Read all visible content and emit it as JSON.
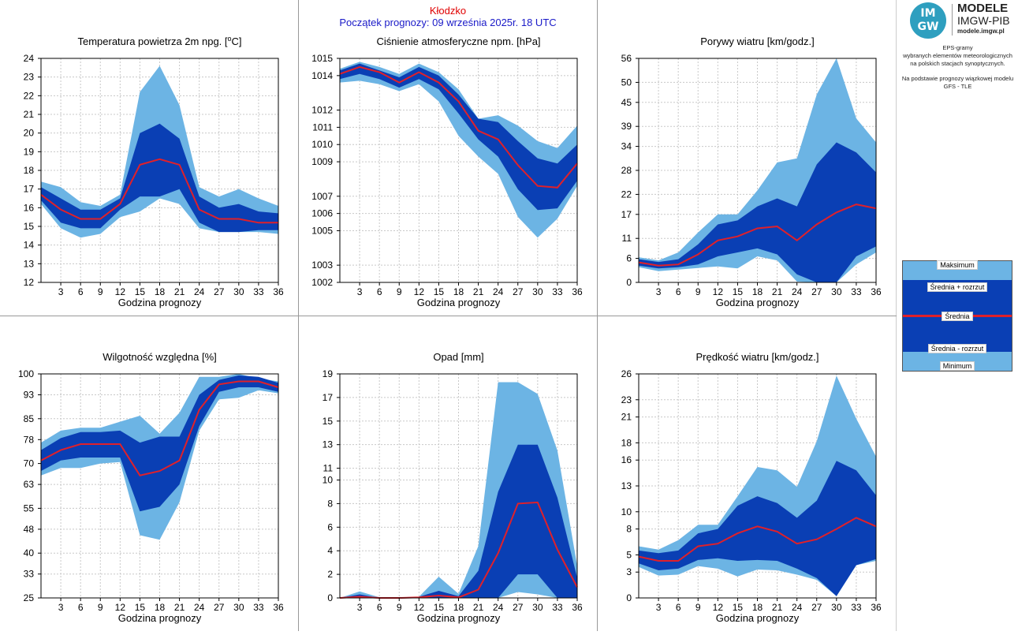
{
  "header": {
    "station": "Kłodzko",
    "forecast_start": "Początek prognozy: 09 września 2025r. 18 UTC"
  },
  "colors": {
    "range": "#6cb4e4",
    "spread": "#0a3fb4",
    "mean": "#e0202a",
    "header_red": "#e00000",
    "header_blue": "#1a1ac8"
  },
  "logo": {
    "mark_line1": "IM",
    "mark_line2": "GW",
    "title": "MODELE",
    "subtitle": "IMGW-PIB",
    "url": "modele.imgw.pl"
  },
  "description": {
    "line1": "EPS-gramy",
    "line2": "wybranych elementów meteorologicznych",
    "line3": "na polskich stacjach  synoptycznych.",
    "line4": "Na podstawie prognozy wiązkowej modelu",
    "line5": "GFS - TLE"
  },
  "legend": {
    "max": "Maksimum",
    "mean_plus": "Średnia + rozrzut",
    "mean": "Średnia",
    "mean_minus": "Średnia - rozrzut",
    "min": "Minimum"
  },
  "chart_data": [
    {
      "type": "area",
      "title": "Temperatura powietrza 2m npg. [°C]",
      "xlabel": "Godzina prognozy",
      "x": [
        0,
        3,
        6,
        9,
        12,
        15,
        18,
        21,
        24,
        27,
        30,
        33,
        36
      ],
      "xticks": [
        3,
        6,
        9,
        12,
        15,
        18,
        21,
        24,
        27,
        30,
        33,
        36
      ],
      "yticks": [
        "12",
        "13",
        "14",
        "15",
        "16",
        "17",
        "18",
        "19",
        "20",
        "21",
        "22",
        "23",
        "24"
      ],
      "ylim": [
        12,
        24
      ],
      "series": {
        "max": [
          17.4,
          17.1,
          16.3,
          16.1,
          16.7,
          22.2,
          23.6,
          21.5,
          17.1,
          16.6,
          17.0,
          16.5,
          16.1
        ],
        "mean_plus": [
          17.1,
          16.5,
          15.9,
          15.9,
          16.5,
          20.0,
          20.5,
          19.7,
          16.6,
          16.0,
          16.2,
          15.8,
          15.7
        ],
        "mean": [
          16.7,
          15.9,
          15.4,
          15.4,
          16.2,
          18.3,
          18.6,
          18.3,
          15.9,
          15.4,
          15.4,
          15.2,
          15.2
        ],
        "mean_minus": [
          16.4,
          15.2,
          14.9,
          14.9,
          15.9,
          16.6,
          16.6,
          17.0,
          15.2,
          14.7,
          14.7,
          14.8,
          14.8
        ],
        "min": [
          16.2,
          14.9,
          14.4,
          14.6,
          15.5,
          15.8,
          16.5,
          16.2,
          14.9,
          14.7,
          14.7,
          14.7,
          14.6
        ]
      }
    },
    {
      "type": "area",
      "title": "Ciśnienie atmosferyczne npm. [hPa]",
      "xlabel": "Godzina prognozy",
      "x": [
        0,
        3,
        6,
        9,
        12,
        15,
        18,
        21,
        24,
        27,
        30,
        33,
        36
      ],
      "xticks": [
        3,
        6,
        9,
        12,
        15,
        18,
        21,
        24,
        27,
        30,
        33,
        36
      ],
      "yticks": [
        "1002",
        "1003",
        "1005",
        "1006",
        "1007",
        "1009",
        "1010",
        "1011",
        "1012",
        "1014",
        "1015"
      ],
      "ylim": [
        1002,
        1015
      ],
      "series": {
        "max": [
          1014.4,
          1014.8,
          1014.5,
          1014.1,
          1014.7,
          1014.2,
          1013.2,
          1011.5,
          1011.7,
          1011.1,
          1010.2,
          1009.8,
          1011.1
        ],
        "mean_plus": [
          1014.3,
          1014.7,
          1014.3,
          1013.9,
          1014.5,
          1014.0,
          1012.9,
          1011.5,
          1011.3,
          1010.2,
          1009.2,
          1008.9,
          1010.0
        ],
        "mean": [
          1014.1,
          1014.5,
          1014.2,
          1013.6,
          1014.2,
          1013.6,
          1012.5,
          1010.8,
          1010.3,
          1008.8,
          1007.6,
          1007.5,
          1008.9
        ],
        "mean_minus": [
          1013.8,
          1014.1,
          1013.8,
          1013.3,
          1013.8,
          1013.2,
          1011.8,
          1010.3,
          1009.3,
          1007.4,
          1006.2,
          1006.3,
          1007.9
        ],
        "min": [
          1013.6,
          1013.7,
          1013.5,
          1013.1,
          1013.5,
          1012.5,
          1010.5,
          1009.3,
          1008.3,
          1005.8,
          1004.6,
          1005.7,
          1007.6
        ]
      }
    },
    {
      "type": "area",
      "title": "Porywy wiatru [km/godz.]",
      "xlabel": "Godzina prognozy",
      "x": [
        0,
        3,
        6,
        9,
        12,
        15,
        18,
        21,
        24,
        27,
        30,
        33,
        36
      ],
      "xticks": [
        3,
        6,
        9,
        12,
        15,
        18,
        21,
        24,
        27,
        30,
        33,
        36
      ],
      "yticks": [
        "0",
        "6",
        "11",
        "17",
        "22",
        "28",
        "34",
        "39",
        "45",
        "50",
        "56"
      ],
      "ylim": [
        0,
        56
      ],
      "series": {
        "max": [
          6.3,
          5.5,
          7.5,
          12.5,
          17.0,
          17.0,
          23.0,
          30.0,
          31.0,
          47.0,
          56.0,
          41.0,
          35.0
        ],
        "mean_plus": [
          5.8,
          5.1,
          5.8,
          9.5,
          14.5,
          15.5,
          19.0,
          21.0,
          19.0,
          29.5,
          35.0,
          32.5,
          27.5
        ],
        "mean": [
          5.0,
          4.2,
          4.5,
          7.0,
          10.5,
          11.5,
          13.5,
          14.0,
          10.5,
          14.5,
          17.5,
          19.5,
          18.5
        ],
        "mean_minus": [
          4.2,
          3.5,
          3.8,
          4.5,
          6.5,
          7.5,
          8.5,
          7.0,
          2.0,
          0.0,
          0.0,
          6.5,
          9.0
        ],
        "min": [
          3.8,
          2.8,
          3.2,
          3.6,
          4.0,
          3.5,
          6.5,
          5.5,
          0.2,
          0.0,
          0.0,
          4.5,
          7.5
        ]
      }
    },
    {
      "type": "area",
      "title": "Wilgotność względna [%]",
      "xlabel": "Godzina prognozy",
      "x": [
        0,
        3,
        6,
        9,
        12,
        15,
        18,
        21,
        24,
        27,
        30,
        33,
        36
      ],
      "xticks": [
        3,
        6,
        9,
        12,
        15,
        18,
        21,
        24,
        27,
        30,
        33,
        36
      ],
      "yticks": [
        "25",
        "33",
        "40",
        "48",
        "55",
        "63",
        "70",
        "78",
        "85",
        "93",
        "100"
      ],
      "ylim": [
        25,
        100
      ],
      "series": {
        "max": [
          77.0,
          81.0,
          82.0,
          82.0,
          84.0,
          86.0,
          80.0,
          87.0,
          99.0,
          99.0,
          100.0,
          98.5,
          97.5
        ],
        "mean_plus": [
          74.5,
          78.5,
          80.5,
          80.5,
          81.0,
          77.0,
          79.0,
          79.0,
          93.0,
          98.0,
          99.5,
          99.0,
          97.0
        ],
        "mean": [
          71.0,
          74.5,
          76.5,
          76.5,
          76.5,
          66.0,
          67.5,
          71.0,
          88.0,
          96.5,
          97.5,
          97.5,
          95.5
        ],
        "mean_minus": [
          67.5,
          71.0,
          72.0,
          72.0,
          72.0,
          54.0,
          55.5,
          63.0,
          82.5,
          94.0,
          95.5,
          95.5,
          94.0
        ],
        "min": [
          66.0,
          68.5,
          68.5,
          70.0,
          70.5,
          46.0,
          44.5,
          57.0,
          81.0,
          91.5,
          92.0,
          94.5,
          93.5
        ]
      }
    },
    {
      "type": "area",
      "title": "Opad [mm]",
      "xlabel": "Godzina prognozy",
      "x": [
        0,
        3,
        6,
        9,
        12,
        15,
        18,
        21,
        24,
        27,
        30,
        33,
        36
      ],
      "xticks": [
        3,
        6,
        9,
        12,
        15,
        18,
        21,
        24,
        27,
        30,
        33,
        36
      ],
      "yticks": [
        "0",
        "2",
        "4",
        "6",
        "8",
        "10",
        "11",
        "13",
        "15",
        "17",
        "19"
      ],
      "ylim": [
        0,
        19
      ],
      "series": {
        "max": [
          0.0,
          0.55,
          0.05,
          0.05,
          0.1,
          1.8,
          0.35,
          4.4,
          18.3,
          18.3,
          17.3,
          12.5,
          2.7
        ],
        "mean_plus": [
          0.0,
          0.3,
          0.0,
          0.0,
          0.1,
          0.6,
          0.15,
          2.3,
          9.0,
          13.0,
          13.0,
          8.5,
          1.7
        ],
        "mean": [
          0.0,
          0.1,
          0.0,
          0.0,
          0.05,
          0.2,
          0.05,
          0.7,
          3.8,
          8.0,
          8.1,
          4.1,
          0.9
        ],
        "mean_minus": [
          0.0,
          0.0,
          0.0,
          0.0,
          0.0,
          0.0,
          0.0,
          0.0,
          0.0,
          2.0,
          2.0,
          0.0,
          0.0
        ],
        "min": [
          0.0,
          0.0,
          0.0,
          0.0,
          0.0,
          0.0,
          0.0,
          0.0,
          0.0,
          0.5,
          0.3,
          0.0,
          0.0
        ]
      }
    },
    {
      "type": "area",
      "title": "Prędkość wiatru [km/godz.]",
      "xlabel": "Godzina prognozy",
      "x": [
        0,
        3,
        6,
        9,
        12,
        15,
        18,
        21,
        24,
        27,
        30,
        33,
        36
      ],
      "xticks": [
        3,
        6,
        9,
        12,
        15,
        18,
        21,
        24,
        27,
        30,
        33,
        36
      ],
      "yticks": [
        "0",
        "3",
        "5",
        "8",
        "10",
        "13",
        "16",
        "18",
        "21",
        "23",
        "26"
      ],
      "ylim": [
        0,
        26
      ],
      "series": {
        "max": [
          6.0,
          5.6,
          6.7,
          8.5,
          8.5,
          11.8,
          15.2,
          14.8,
          12.9,
          18.2,
          25.8,
          20.8,
          16.4
        ],
        "mean_plus": [
          5.5,
          5.2,
          5.5,
          7.5,
          8.0,
          10.7,
          11.8,
          11.0,
          9.3,
          11.3,
          15.9,
          14.8,
          11.9
        ],
        "mean": [
          4.8,
          4.3,
          4.3,
          6.0,
          6.3,
          7.5,
          8.3,
          7.7,
          6.3,
          6.8,
          8.0,
          9.3,
          8.3
        ],
        "mean_minus": [
          4.0,
          3.2,
          3.4,
          4.4,
          4.6,
          4.3,
          4.4,
          4.3,
          3.4,
          2.3,
          0.2,
          3.8,
          4.5
        ],
        "min": [
          3.6,
          2.6,
          2.7,
          3.7,
          3.4,
          2.5,
          3.3,
          3.2,
          2.7,
          2.1,
          0.2,
          3.8,
          4.3
        ]
      }
    }
  ]
}
